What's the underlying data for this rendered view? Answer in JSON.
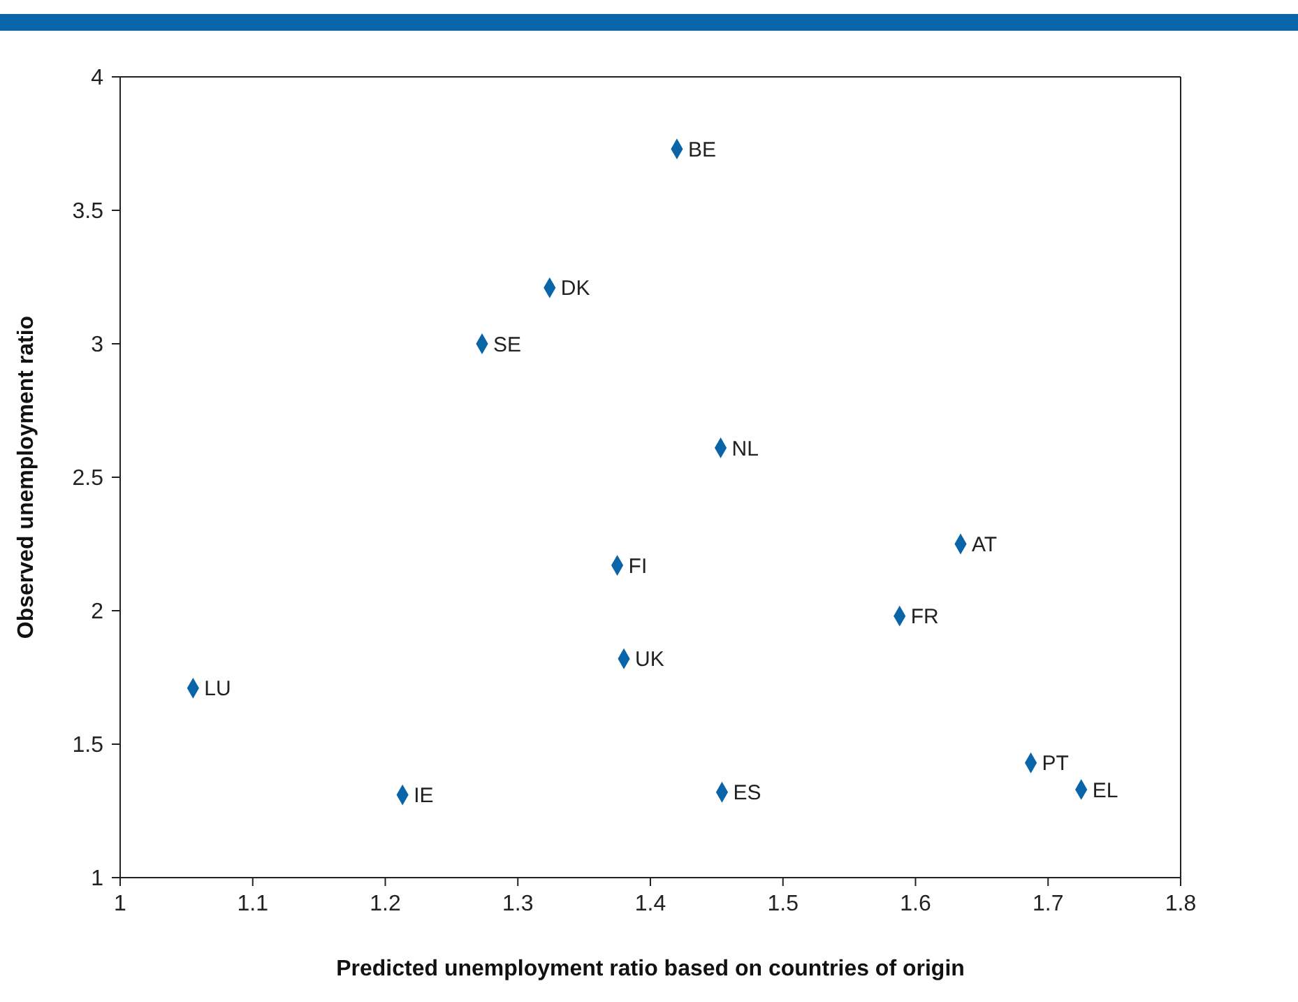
{
  "chart_data": {
    "type": "scatter",
    "xlabel": "Predicted unemployment ratio based on countries of origin",
    "ylabel": "Observed unemployment ratio",
    "x": [
      1.42,
      1.324,
      1.273,
      1.453,
      1.634,
      1.375,
      1.588,
      1.38,
      1.055,
      1.687,
      1.725,
      1.213,
      1.454
    ],
    "series": [
      {
        "color": "#0a64a8",
        "values": [
          3.73,
          3.21,
          3.0,
          2.61,
          2.25,
          2.17,
          1.98,
          1.82,
          1.71,
          1.43,
          1.33,
          1.31,
          1.32
        ]
      }
    ],
    "marker": "diamond",
    "grid": false,
    "legend": false,
    "xlim": [
      1,
      1.8
    ],
    "xticks": [
      1,
      1.1,
      1.2,
      1.3,
      1.4,
      1.5,
      1.6,
      1.7,
      1.8
    ],
    "ylim": [
      1,
      4
    ],
    "yticks": [
      1,
      1.5,
      2,
      2.5,
      3,
      3.5,
      4
    ],
    "annotations": [
      {
        "text": "BE",
        "x": 1.42,
        "y": 3.73
      },
      {
        "text": "DK",
        "x": 1.324,
        "y": 3.21
      },
      {
        "text": "SE",
        "x": 1.273,
        "y": 3.0
      },
      {
        "text": "NL",
        "x": 1.453,
        "y": 2.61
      },
      {
        "text": "AT",
        "x": 1.634,
        "y": 2.25
      },
      {
        "text": "FI",
        "x": 1.375,
        "y": 2.17
      },
      {
        "text": "FR",
        "x": 1.588,
        "y": 1.98
      },
      {
        "text": "UK",
        "x": 1.38,
        "y": 1.82
      },
      {
        "text": "LU",
        "x": 1.055,
        "y": 1.71
      },
      {
        "text": "PT",
        "x": 1.687,
        "y": 1.43
      },
      {
        "text": "EL",
        "x": 1.725,
        "y": 1.33
      },
      {
        "text": "IE",
        "x": 1.213,
        "y": 1.31
      },
      {
        "text": "ES",
        "x": 1.454,
        "y": 1.32
      }
    ]
  }
}
